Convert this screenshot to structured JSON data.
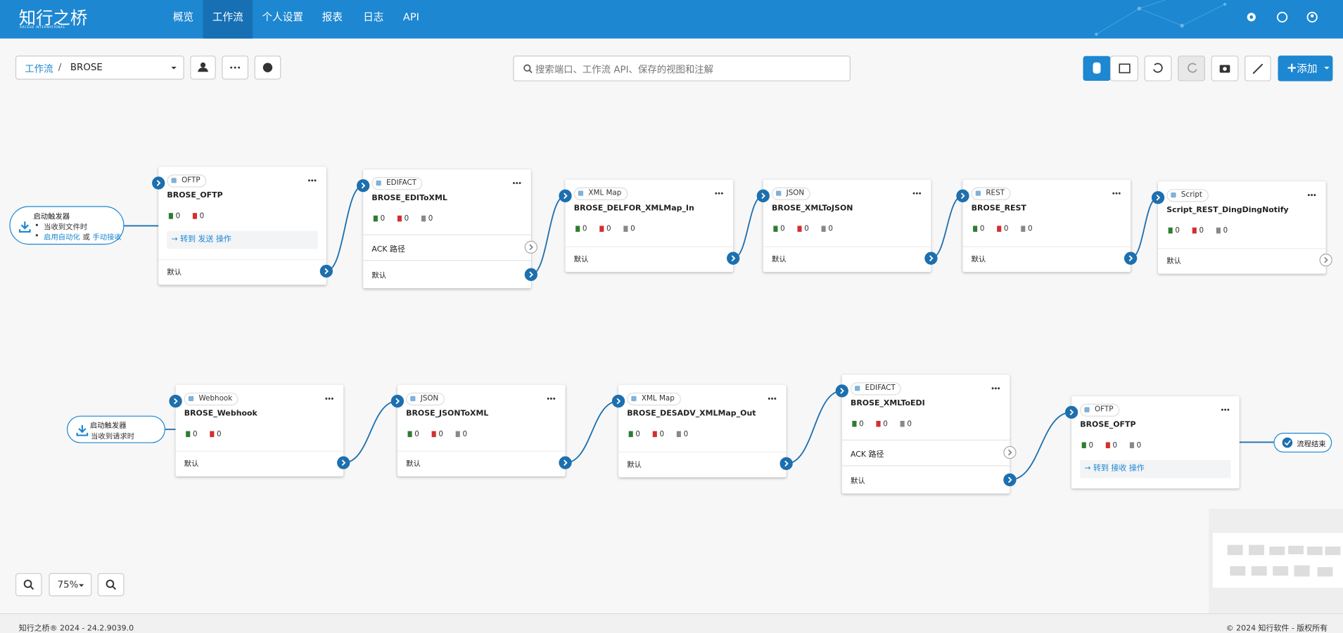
{
  "header": {
    "logo": "知行之桥",
    "logo_sub": "ARCESB INTERNATIONAL",
    "nav": [
      "概览",
      "工作流",
      "个人设置",
      "报表",
      "日志",
      "API"
    ]
  },
  "toolbar": {
    "breadcrumb": "工作流",
    "separator": "/",
    "workflow": "BROSE",
    "search_placeholder": "搜索端口、工作流 API、保存的视图和注解",
    "add_button": "添加"
  },
  "triggers": [
    {
      "title": "启动触发器",
      "line": "当收到文件时",
      "enable": "启用自动化",
      "or": "或",
      "manual": "手动接收"
    },
    {
      "title": "启动触发器",
      "line": "当收到请求时"
    }
  ],
  "end": "流程结束",
  "nodes": [
    {
      "type": "OFTP",
      "name": "BROSE_OFTP",
      "counts": [
        0,
        0
      ],
      "action": "→ 转到 发送 操作",
      "output": "默认"
    },
    {
      "type": "EDIFACT",
      "name": "BROSE_EDIToXML",
      "counts": [
        0,
        0,
        0
      ],
      "ack": "ACK 路径",
      "output": "默认"
    },
    {
      "type": "XML Map",
      "name": "BROSE_DELFOR_XMLMap_In",
      "counts": [
        0,
        0,
        0
      ],
      "output": "默认"
    },
    {
      "type": "JSON",
      "name": "BROSE_XMLToJSON",
      "counts": [
        0,
        0,
        0
      ],
      "output": "默认"
    },
    {
      "type": "REST",
      "name": "BROSE_REST",
      "counts": [
        0,
        0,
        0
      ],
      "output": "默认"
    },
    {
      "type": "Script",
      "name": "Script_REST_DingDingNotify",
      "counts": [
        0,
        0,
        0
      ],
      "output": "默认"
    },
    {
      "type": "Webhook",
      "name": "BROSE_Webhook",
      "counts": [
        0,
        0
      ],
      "output": "默认"
    },
    {
      "type": "JSON",
      "name": "BROSE_JSONToXML",
      "counts": [
        0,
        0,
        0
      ],
      "output": "默认"
    },
    {
      "type": "XML Map",
      "name": "BROSE_DESADV_XMLMap_Out",
      "counts": [
        0,
        0,
        0
      ],
      "output": "默认"
    },
    {
      "type": "EDIFACT",
      "name": "BROSE_XMLToEDI",
      "counts": [
        0,
        0,
        0
      ],
      "ack": "ACK 路径",
      "output": "默认"
    },
    {
      "type": "OFTP",
      "name": "BROSE_OFTP",
      "counts": [
        0,
        0,
        0
      ],
      "action": "→ 转到 接收 操作"
    }
  ],
  "zoom": "75%",
  "footer": {
    "left": "知行之桥® 2024 - 24.2.9039.0",
    "right": "© 2024 知行软件 - 版权所有"
  }
}
